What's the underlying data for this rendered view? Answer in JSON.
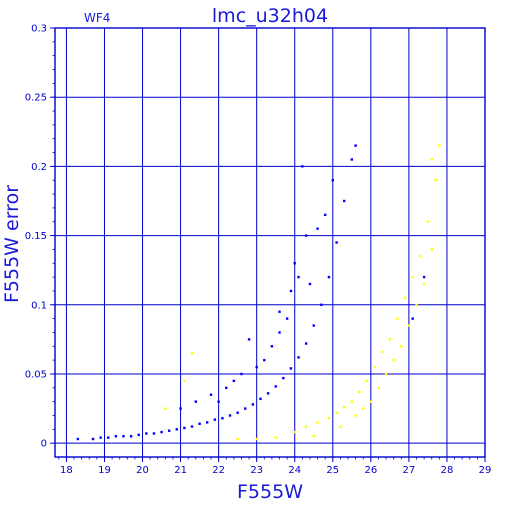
{
  "chart_data": {
    "type": "scatter",
    "title": "lmc_u32h04",
    "subtitle": "WF4",
    "xlabel": "F555W",
    "ylabel": "F555W error",
    "xlim": [
      17.7,
      29
    ],
    "ylim": [
      -0.01,
      0.3
    ],
    "grid": true,
    "x_ticks": [
      "18",
      "19",
      "20",
      "21",
      "22",
      "23",
      "24",
      "25",
      "26",
      "27",
      "28",
      "29"
    ],
    "y_ticks": [
      "0",
      "0.05",
      "0.1",
      "0.15",
      "0.2",
      "0.25",
      "0.3"
    ],
    "series": [
      {
        "color": "#0000ff",
        "points": [
          [
            18.3,
            0.003
          ],
          [
            18.7,
            0.003
          ],
          [
            18.9,
            0.004
          ],
          [
            19.1,
            0.004
          ],
          [
            19.3,
            0.005
          ],
          [
            19.5,
            0.005
          ],
          [
            19.7,
            0.005
          ],
          [
            19.9,
            0.006
          ],
          [
            20.1,
            0.007
          ],
          [
            20.3,
            0.007
          ],
          [
            20.5,
            0.008
          ],
          [
            20.7,
            0.009
          ],
          [
            20.9,
            0.01
          ],
          [
            21.1,
            0.011
          ],
          [
            21.3,
            0.012
          ],
          [
            21.5,
            0.014
          ],
          [
            21.7,
            0.015
          ],
          [
            21.9,
            0.017
          ],
          [
            22.1,
            0.018
          ],
          [
            22.3,
            0.02
          ],
          [
            22.5,
            0.022
          ],
          [
            22.7,
            0.025
          ],
          [
            22.9,
            0.028
          ],
          [
            23.1,
            0.032
          ],
          [
            23.3,
            0.036
          ],
          [
            23.5,
            0.041
          ],
          [
            23.7,
            0.047
          ],
          [
            23.9,
            0.054
          ],
          [
            24.1,
            0.062
          ],
          [
            24.3,
            0.072
          ],
          [
            24.5,
            0.085
          ],
          [
            24.7,
            0.1
          ],
          [
            24.9,
            0.12
          ],
          [
            25.1,
            0.145
          ],
          [
            25.3,
            0.175
          ],
          [
            25.5,
            0.205
          ],
          [
            25.6,
            0.215
          ],
          [
            21.0,
            0.025
          ],
          [
            21.4,
            0.03
          ],
          [
            21.8,
            0.035
          ],
          [
            22.2,
            0.04
          ],
          [
            22.6,
            0.05
          ],
          [
            23.0,
            0.055
          ],
          [
            23.4,
            0.07
          ],
          [
            23.6,
            0.08
          ],
          [
            23.8,
            0.09
          ],
          [
            23.2,
            0.06
          ],
          [
            23.6,
            0.095
          ],
          [
            24.0,
            0.13
          ],
          [
            24.2,
            0.2
          ],
          [
            24.3,
            0.15
          ],
          [
            24.4,
            0.115
          ],
          [
            24.6,
            0.155
          ],
          [
            24.8,
            0.165
          ],
          [
            25.0,
            0.19
          ],
          [
            23.9,
            0.11
          ],
          [
            24.1,
            0.12
          ],
          [
            22.8,
            0.075
          ],
          [
            22.4,
            0.045
          ],
          [
            22.0,
            0.03
          ],
          [
            27.4,
            0.12
          ],
          [
            27.1,
            0.09
          ]
        ]
      },
      {
        "color": "#ffff00",
        "points": [
          [
            20.6,
            0.025
          ],
          [
            21.1,
            0.045
          ],
          [
            21.3,
            0.065
          ],
          [
            22.5,
            0.003
          ],
          [
            23.0,
            0.003
          ],
          [
            23.5,
            0.004
          ],
          [
            24.0,
            0.008
          ],
          [
            24.3,
            0.012
          ],
          [
            24.6,
            0.015
          ],
          [
            24.9,
            0.018
          ],
          [
            25.1,
            0.022
          ],
          [
            25.3,
            0.026
          ],
          [
            25.5,
            0.03
          ],
          [
            25.7,
            0.037
          ],
          [
            25.9,
            0.045
          ],
          [
            26.1,
            0.055
          ],
          [
            26.3,
            0.066
          ],
          [
            26.5,
            0.075
          ],
          [
            26.7,
            0.09
          ],
          [
            26.9,
            0.105
          ],
          [
            27.1,
            0.12
          ],
          [
            27.3,
            0.135
          ],
          [
            27.5,
            0.16
          ],
          [
            27.7,
            0.19
          ],
          [
            27.8,
            0.215
          ],
          [
            26.2,
            0.04
          ],
          [
            26.4,
            0.05
          ],
          [
            26.6,
            0.06
          ],
          [
            25.8,
            0.025
          ],
          [
            26.0,
            0.03
          ],
          [
            27.0,
            0.085
          ],
          [
            27.2,
            0.1
          ],
          [
            27.4,
            0.115
          ],
          [
            27.6,
            0.14
          ],
          [
            24.5,
            0.005
          ],
          [
            25.2,
            0.012
          ],
          [
            27.6,
            0.205
          ],
          [
            26.8,
            0.07
          ],
          [
            25.6,
            0.02
          ]
        ]
      }
    ]
  }
}
